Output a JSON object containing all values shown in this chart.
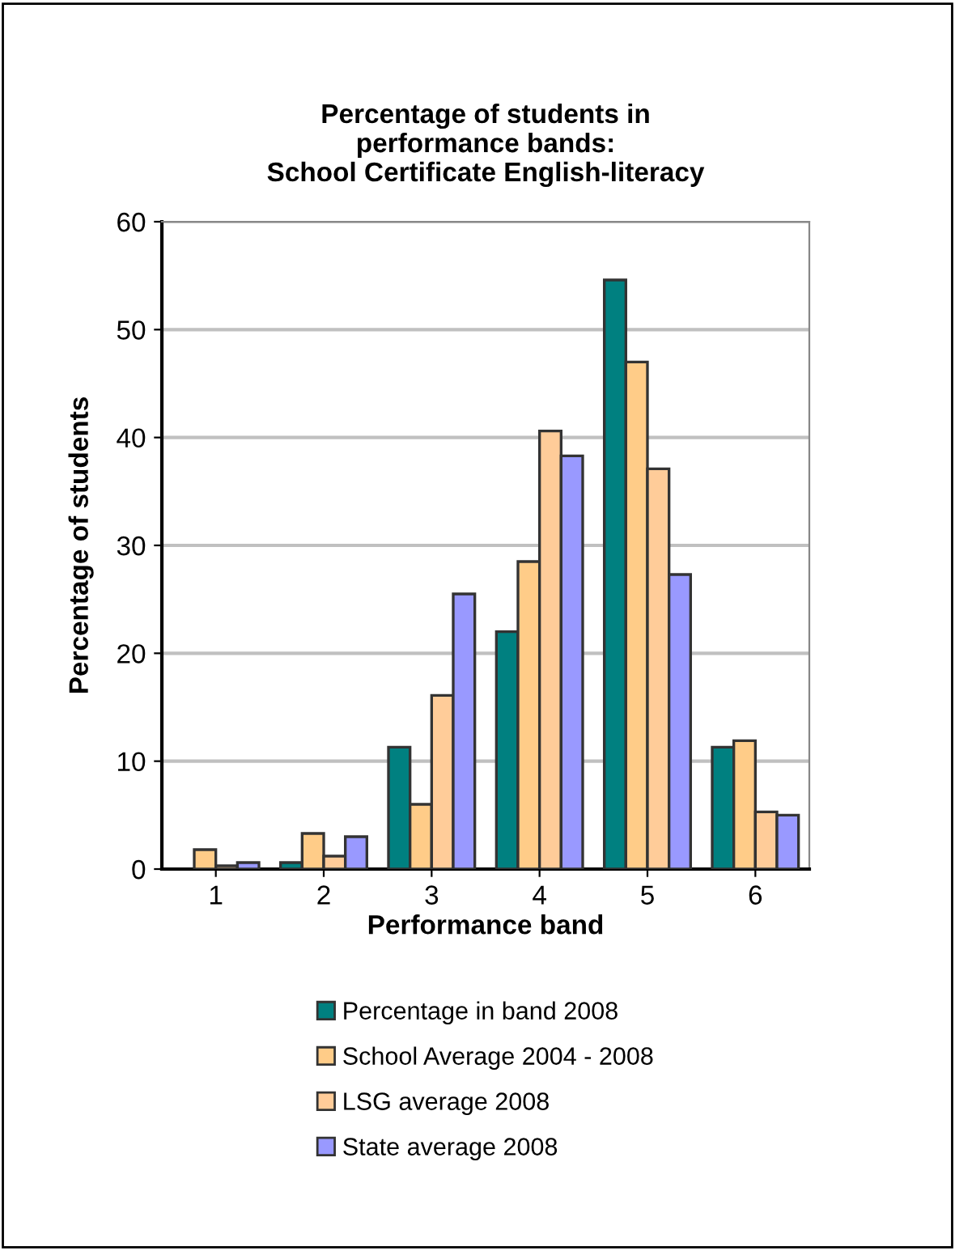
{
  "chart_data": {
    "type": "bar",
    "title": "Percentage of students in\nperformance bands:\nSchool Certificate English-literacy",
    "xlabel": "Performance band",
    "ylabel": "Percentage of students",
    "categories": [
      "1",
      "2",
      "3",
      "4",
      "5",
      "6"
    ],
    "series": [
      {
        "name": "Percentage in band 2008",
        "color": "#008080",
        "values": [
          null,
          0.6,
          11.3,
          22.0,
          54.6,
          11.3
        ]
      },
      {
        "name": "School Average 2004 - 2008",
        "color": "#ffcc88",
        "values": [
          1.8,
          3.3,
          6.0,
          28.5,
          47.0,
          11.9
        ]
      },
      {
        "name": "LSG average 2008",
        "color": "#ffcc99",
        "values": [
          0.3,
          1.2,
          16.1,
          40.6,
          37.1,
          5.3
        ]
      },
      {
        "name": "State average 2008",
        "color": "#9999ff",
        "values": [
          0.6,
          3.0,
          25.5,
          38.3,
          27.3,
          5.0
        ]
      }
    ],
    "ylim": [
      0,
      60
    ],
    "yticks": [
      0,
      10,
      20,
      30,
      40,
      50,
      60
    ],
    "grid": "y",
    "legend": "bottom"
  }
}
